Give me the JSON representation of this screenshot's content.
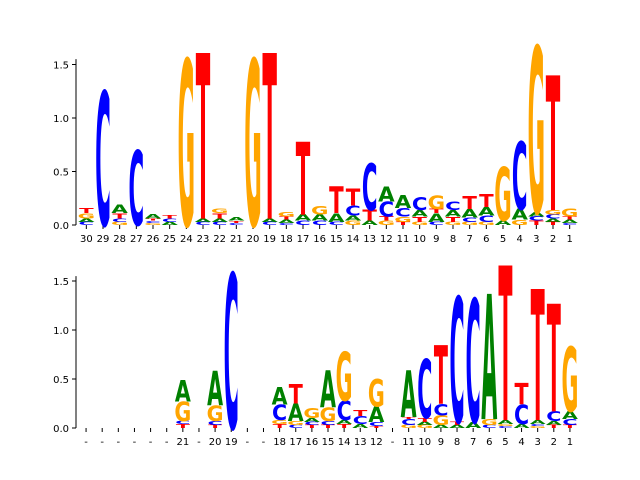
{
  "chart_data": [
    {
      "type": "sequence-logo",
      "y_ticks": [
        "0.0",
        "0.5",
        "1.0",
        "1.5"
      ],
      "ylim": [
        0,
        1.55
      ],
      "positions": [
        {
          "label": "30",
          "letters": [
            {
              "base": "C",
              "h": 0.03
            },
            {
              "base": "A",
              "h": 0.03
            },
            {
              "base": "G",
              "h": 0.05
            },
            {
              "base": "T",
              "h": 0.05
            }
          ]
        },
        {
          "label": "29",
          "letters": [
            {
              "base": "C",
              "h": 1.25
            }
          ]
        },
        {
          "label": "28",
          "letters": [
            {
              "base": "G",
              "h": 0.03
            },
            {
              "base": "C",
              "h": 0.03
            },
            {
              "base": "T",
              "h": 0.05
            },
            {
              "base": "A",
              "h": 0.08
            }
          ]
        },
        {
          "label": "27",
          "letters": [
            {
              "base": "C",
              "h": 0.7
            }
          ]
        },
        {
          "label": "26",
          "letters": [
            {
              "base": "G",
              "h": 0.02
            },
            {
              "base": "C",
              "h": 0.02
            },
            {
              "base": "T",
              "h": 0.02
            },
            {
              "base": "A",
              "h": 0.04
            }
          ]
        },
        {
          "label": "25",
          "letters": [
            {
              "base": "A",
              "h": 0.03
            },
            {
              "base": "C",
              "h": 0.03
            },
            {
              "base": "T",
              "h": 0.03
            }
          ]
        },
        {
          "label": "24",
          "letters": [
            {
              "base": "G",
              "h": 1.55
            }
          ]
        },
        {
          "label": "23",
          "letters": [
            {
              "base": "C",
              "h": 0.03
            },
            {
              "base": "A",
              "h": 0.03
            },
            {
              "base": "T",
              "h": 1.55
            }
          ]
        },
        {
          "label": "22",
          "letters": [
            {
              "base": "C",
              "h": 0.03
            },
            {
              "base": "A",
              "h": 0.03
            },
            {
              "base": "T",
              "h": 0.05
            },
            {
              "base": "G",
              "h": 0.04
            }
          ]
        },
        {
          "label": "21",
          "letters": [
            {
              "base": "C",
              "h": 0.02
            },
            {
              "base": "T",
              "h": 0.02
            },
            {
              "base": "A",
              "h": 0.03
            }
          ]
        },
        {
          "label": "20",
          "letters": [
            {
              "base": "G",
              "h": 1.55
            }
          ]
        },
        {
          "label": "19",
          "letters": [
            {
              "base": "C",
              "h": 0.03
            },
            {
              "base": "A",
              "h": 0.03
            },
            {
              "base": "T",
              "h": 1.55
            }
          ]
        },
        {
          "label": "18",
          "letters": [
            {
              "base": "C",
              "h": 0.02
            },
            {
              "base": "A",
              "h": 0.03
            },
            {
              "base": "T",
              "h": 0.03
            },
            {
              "base": "G",
              "h": 0.04
            }
          ]
        },
        {
          "label": "17",
          "letters": [
            {
              "base": "C",
              "h": 0.04
            },
            {
              "base": "A",
              "h": 0.06
            },
            {
              "base": "T",
              "h": 0.68
            }
          ]
        },
        {
          "label": "16",
          "letters": [
            {
              "base": "C",
              "h": 0.04
            },
            {
              "base": "A",
              "h": 0.06
            },
            {
              "base": "G",
              "h": 0.08
            }
          ]
        },
        {
          "label": "15",
          "letters": [
            {
              "base": "C",
              "h": 0.03
            },
            {
              "base": "A",
              "h": 0.08
            },
            {
              "base": "T",
              "h": 0.25
            }
          ]
        },
        {
          "label": "14",
          "letters": [
            {
              "base": "G",
              "h": 0.04
            },
            {
              "base": "A",
              "h": 0.05
            },
            {
              "base": "C",
              "h": 0.09
            },
            {
              "base": "T",
              "h": 0.16
            }
          ]
        },
        {
          "label": "13",
          "letters": [
            {
              "base": "A",
              "h": 0.04
            },
            {
              "base": "T",
              "h": 0.1
            },
            {
              "base": "C",
              "h": 0.44
            }
          ]
        },
        {
          "label": "12",
          "letters": [
            {
              "base": "G",
              "h": 0.04
            },
            {
              "base": "T",
              "h": 0.04
            },
            {
              "base": "C",
              "h": 0.14
            },
            {
              "base": "A",
              "h": 0.14
            }
          ]
        },
        {
          "label": "11",
          "letters": [
            {
              "base": "T",
              "h": 0.03
            },
            {
              "base": "G",
              "h": 0.05
            },
            {
              "base": "C",
              "h": 0.08
            },
            {
              "base": "A",
              "h": 0.12
            }
          ]
        },
        {
          "label": "10",
          "letters": [
            {
              "base": "G",
              "h": 0.03
            },
            {
              "base": "T",
              "h": 0.05
            },
            {
              "base": "A",
              "h": 0.06
            },
            {
              "base": "C",
              "h": 0.12
            }
          ]
        },
        {
          "label": "9",
          "letters": [
            {
              "base": "C",
              "h": 0.03
            },
            {
              "base": "A",
              "h": 0.08
            },
            {
              "base": "T",
              "h": 0.04
            },
            {
              "base": "G",
              "h": 0.13
            }
          ]
        },
        {
          "label": "8",
          "letters": [
            {
              "base": "G",
              "h": 0.03
            },
            {
              "base": "T",
              "h": 0.05
            },
            {
              "base": "A",
              "h": 0.06
            },
            {
              "base": "C",
              "h": 0.08
            }
          ]
        },
        {
          "label": "7",
          "letters": [
            {
              "base": "G",
              "h": 0.03
            },
            {
              "base": "C",
              "h": 0.04
            },
            {
              "base": "A",
              "h": 0.08
            },
            {
              "base": "T",
              "h": 0.12
            }
          ]
        },
        {
          "label": "6",
          "letters": [
            {
              "base": "G",
              "h": 0.03
            },
            {
              "base": "C",
              "h": 0.06
            },
            {
              "base": "A",
              "h": 0.08
            },
            {
              "base": "T",
              "h": 0.12
            }
          ]
        },
        {
          "label": "5",
          "letters": [
            {
              "base": "A",
              "h": 0.04
            },
            {
              "base": "G",
              "h": 0.5
            }
          ]
        },
        {
          "label": "4",
          "letters": [
            {
              "base": "G",
              "h": 0.05
            },
            {
              "base": "A",
              "h": 0.1
            },
            {
              "base": "C",
              "h": 0.63
            }
          ]
        },
        {
          "label": "3",
          "letters": [
            {
              "base": "T",
              "h": 0.04
            },
            {
              "base": "C",
              "h": 0.04
            },
            {
              "base": "A",
              "h": 0.04
            },
            {
              "base": "G",
              "h": 1.55
            }
          ]
        },
        {
          "label": "2",
          "letters": [
            {
              "base": "T",
              "h": 0.03
            },
            {
              "base": "A",
              "h": 0.03
            },
            {
              "base": "C",
              "h": 0.04
            },
            {
              "base": "G",
              "h": 0.04
            },
            {
              "base": "T",
              "h": 1.26
            }
          ]
        },
        {
          "label": "1",
          "letters": [
            {
              "base": "C",
              "h": 0.02
            },
            {
              "base": "A",
              "h": 0.03
            },
            {
              "base": "T",
              "h": 0.03
            },
            {
              "base": "G",
              "h": 0.07
            }
          ]
        }
      ]
    },
    {
      "type": "sequence-logo",
      "y_ticks": [
        "0.0",
        "0.5",
        "1.0",
        "1.5"
      ],
      "ylim": [
        0,
        1.55
      ],
      "positions": [
        {
          "label": "-",
          "letters": []
        },
        {
          "label": "-",
          "letters": []
        },
        {
          "label": "-",
          "letters": []
        },
        {
          "label": "-",
          "letters": []
        },
        {
          "label": "-",
          "letters": []
        },
        {
          "label": "-",
          "letters": []
        },
        {
          "label": "21",
          "letters": [
            {
              "base": "T",
              "h": 0.04
            },
            {
              "base": "C",
              "h": 0.03
            },
            {
              "base": "G",
              "h": 0.2
            },
            {
              "base": "A",
              "h": 0.22
            }
          ]
        },
        {
          "label": "-",
          "letters": []
        },
        {
          "label": "20",
          "letters": [
            {
              "base": "T",
              "h": 0.03
            },
            {
              "base": "C",
              "h": 0.04
            },
            {
              "base": "G",
              "h": 0.16
            },
            {
              "base": "A",
              "h": 0.35
            }
          ]
        },
        {
          "label": "19",
          "letters": [
            {
              "base": "C",
              "h": 1.58
            }
          ]
        },
        {
          "label": "-",
          "letters": []
        },
        {
          "label": "-",
          "letters": []
        },
        {
          "label": "18",
          "letters": [
            {
              "base": "T",
              "h": 0.04
            },
            {
              "base": "G",
              "h": 0.04
            },
            {
              "base": "C",
              "h": 0.16
            },
            {
              "base": "A",
              "h": 0.18
            }
          ]
        },
        {
          "label": "17",
          "letters": [
            {
              "base": "C",
              "h": 0.03
            },
            {
              "base": "G",
              "h": 0.04
            },
            {
              "base": "A",
              "h": 0.18
            },
            {
              "base": "T",
              "h": 0.2
            }
          ]
        },
        {
          "label": "16",
          "letters": [
            {
              "base": "T",
              "h": 0.03
            },
            {
              "base": "C",
              "h": 0.03
            },
            {
              "base": "A",
              "h": 0.04
            },
            {
              "base": "G",
              "h": 0.1
            }
          ]
        },
        {
          "label": "15",
          "letters": [
            {
              "base": "T",
              "h": 0.03
            },
            {
              "base": "C",
              "h": 0.04
            },
            {
              "base": "G",
              "h": 0.14
            },
            {
              "base": "A",
              "h": 0.38
            }
          ]
        },
        {
          "label": "14",
          "letters": [
            {
              "base": "T",
              "h": 0.04
            },
            {
              "base": "A",
              "h": 0.04
            },
            {
              "base": "C",
              "h": 0.2
            },
            {
              "base": "G",
              "h": 0.5
            }
          ]
        },
        {
          "label": "13",
          "letters": [
            {
              "base": "A",
              "h": 0.04
            },
            {
              "base": "C",
              "h": 0.08
            },
            {
              "base": "T",
              "h": 0.06
            }
          ]
        },
        {
          "label": "12",
          "letters": [
            {
              "base": "T",
              "h": 0.02
            },
            {
              "base": "C",
              "h": 0.04
            },
            {
              "base": "A",
              "h": 0.16
            },
            {
              "base": "G",
              "h": 0.28
            }
          ]
        },
        {
          "label": "-",
          "letters": []
        },
        {
          "label": "11",
          "letters": [
            {
              "base": "G",
              "h": 0.03
            },
            {
              "base": "C",
              "h": 0.06
            },
            {
              "base": "T",
              "h": 0.02
            },
            {
              "base": "A",
              "h": 0.48
            }
          ]
        },
        {
          "label": "10",
          "letters": [
            {
              "base": "G",
              "h": 0.03
            },
            {
              "base": "A",
              "h": 0.03
            },
            {
              "base": "T",
              "h": 0.04
            },
            {
              "base": "C",
              "h": 0.6
            }
          ]
        },
        {
          "label": "9",
          "letters": [
            {
              "base": "A",
              "h": 0.03
            },
            {
              "base": "G",
              "h": 0.1
            },
            {
              "base": "C",
              "h": 0.12
            },
            {
              "base": "T",
              "h": 0.6
            }
          ]
        },
        {
          "label": "8",
          "letters": [
            {
              "base": "A",
              "h": 0.03
            },
            {
              "base": "T",
              "h": 0.03
            },
            {
              "base": "C",
              "h": 1.28
            }
          ]
        },
        {
          "label": "7",
          "letters": [
            {
              "base": "A",
              "h": 0.06
            },
            {
              "base": "C",
              "h": 1.26
            }
          ]
        },
        {
          "label": "6",
          "letters": [
            {
              "base": "C",
              "h": 0.03
            },
            {
              "base": "G",
              "h": 0.06
            },
            {
              "base": "A",
              "h": 1.28
            }
          ]
        },
        {
          "label": "5",
          "letters": [
            {
              "base": "C",
              "h": 0.02
            },
            {
              "base": "G",
              "h": 0.02
            },
            {
              "base": "A",
              "h": 0.04
            },
            {
              "base": "T",
              "h": 1.58
            }
          ]
        },
        {
          "label": "4",
          "letters": [
            {
              "base": "A",
              "h": 0.04
            },
            {
              "base": "C",
              "h": 0.2
            },
            {
              "base": "T",
              "h": 0.22
            }
          ]
        },
        {
          "label": "3",
          "letters": [
            {
              "base": "G",
              "h": 0.02
            },
            {
              "base": "C",
              "h": 0.02
            },
            {
              "base": "A",
              "h": 0.04
            },
            {
              "base": "T",
              "h": 1.34
            }
          ]
        },
        {
          "label": "2",
          "letters": [
            {
              "base": "T",
              "h": 0.03
            },
            {
              "base": "A",
              "h": 0.04
            },
            {
              "base": "C",
              "h": 0.1
            },
            {
              "base": "T",
              "h": 1.1
            }
          ]
        },
        {
          "label": "1",
          "letters": [
            {
              "base": "T",
              "h": 0.03
            },
            {
              "base": "C",
              "h": 0.06
            },
            {
              "base": "A",
              "h": 0.08
            },
            {
              "base": "G",
              "h": 0.66
            }
          ]
        }
      ]
    }
  ],
  "base_colors": {
    "A": "#008000",
    "C": "#0000ff",
    "G": "#ffa500",
    "T": "#ff0000"
  }
}
